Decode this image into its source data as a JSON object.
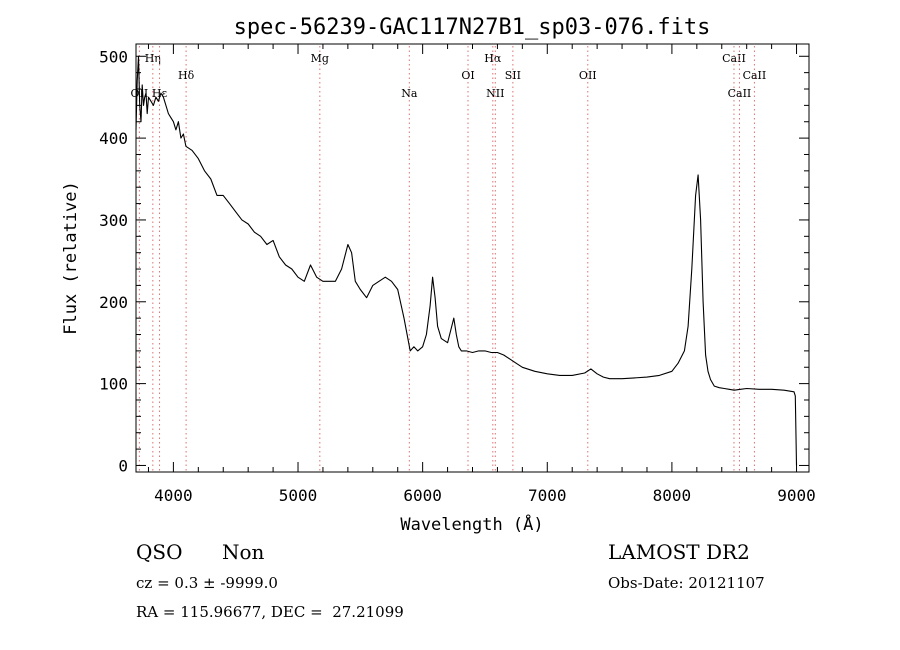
{
  "chart_data": {
    "type": "line",
    "title": "spec-56239-GAC117N27B1_sp03-076.fits",
    "xlabel": "Wavelength (Å)",
    "ylabel": "Flux (relative)",
    "xlim": [
      3700,
      9100
    ],
    "ylim": [
      -8,
      515
    ],
    "xticks": [
      "4000",
      "5000",
      "6000",
      "7000",
      "8000",
      "9000"
    ],
    "xtick_values": [
      4000,
      5000,
      6000,
      7000,
      8000,
      9000
    ],
    "yticks": [
      "0",
      "100",
      "200",
      "300",
      "400",
      "500"
    ],
    "ytick_values": [
      0,
      100,
      200,
      300,
      400,
      500
    ],
    "grid": false,
    "series": [
      {
        "color": "#000000",
        "x": [
          3700,
          3710,
          3720,
          3730,
          3740,
          3750,
          3760,
          3770,
          3780,
          3790,
          3800,
          3820,
          3840,
          3860,
          3880,
          3900,
          3920,
          3940,
          3960,
          3980,
          4000,
          4020,
          4040,
          4060,
          4080,
          4100,
          4150,
          4200,
          4250,
          4300,
          4350,
          4400,
          4450,
          4500,
          4550,
          4600,
          4650,
          4700,
          4750,
          4800,
          4850,
          4900,
          4950,
          5000,
          5050,
          5100,
          5150,
          5200,
          5250,
          5300,
          5350,
          5400,
          5430,
          5460,
          5500,
          5550,
          5600,
          5650,
          5700,
          5750,
          5800,
          5850,
          5900,
          5930,
          5960,
          6000,
          6030,
          6060,
          6080,
          6100,
          6120,
          6150,
          6200,
          6250,
          6270,
          6290,
          6310,
          6350,
          6400,
          6450,
          6500,
          6550,
          6600,
          6650,
          6700,
          6750,
          6800,
          6900,
          7000,
          7100,
          7200,
          7300,
          7350,
          7400,
          7450,
          7500,
          7600,
          7700,
          7800,
          7900,
          8000,
          8050,
          8100,
          8130,
          8160,
          8190,
          8210,
          8230,
          8250,
          8270,
          8290,
          8310,
          8340,
          8380,
          8420,
          8460,
          8500,
          8550,
          8600,
          8700,
          8800,
          8900,
          8980,
          8990,
          9000
        ],
        "y": [
          410,
          470,
          500,
          440,
          420,
          465,
          440,
          450,
          455,
          430,
          450,
          445,
          440,
          450,
          445,
          455,
          450,
          440,
          430,
          425,
          420,
          410,
          420,
          400,
          405,
          390,
          385,
          375,
          360,
          350,
          330,
          330,
          320,
          310,
          300,
          295,
          285,
          280,
          270,
          275,
          255,
          245,
          240,
          230,
          225,
          245,
          230,
          225,
          225,
          225,
          240,
          270,
          260,
          225,
          215,
          205,
          220,
          225,
          230,
          225,
          215,
          180,
          140,
          145,
          140,
          145,
          160,
          195,
          230,
          205,
          170,
          155,
          150,
          180,
          160,
          145,
          140,
          140,
          138,
          140,
          140,
          138,
          138,
          135,
          130,
          125,
          120,
          115,
          112,
          110,
          110,
          113,
          118,
          112,
          108,
          106,
          106,
          107,
          108,
          110,
          115,
          125,
          140,
          170,
          240,
          330,
          355,
          300,
          200,
          135,
          115,
          105,
          97,
          95,
          94,
          93,
          92,
          93,
          94,
          93,
          93,
          92,
          90,
          85,
          0
        ]
      }
    ],
    "line_markers": [
      {
        "label": "Hη",
        "x": 3835,
        "row": 1
      },
      {
        "label": "OII",
        "x": 3727,
        "row": 3
      },
      {
        "label": "Hε",
        "x": 3889,
        "row": 3
      },
      {
        "label": "Hδ",
        "x": 4102,
        "row": 2
      },
      {
        "label": "Mg",
        "x": 5175,
        "row": 1
      },
      {
        "label": "Na",
        "x": 5893,
        "row": 3
      },
      {
        "label": "OI",
        "x": 6364,
        "row": 2
      },
      {
        "label": "Hα",
        "x": 6563,
        "row": 1
      },
      {
        "label": "NII",
        "x": 6583,
        "row": 3
      },
      {
        "label": "SII",
        "x": 6724,
        "row": 2
      },
      {
        "label": "OII",
        "x": 7325,
        "row": 2
      },
      {
        "label": "CaII",
        "x": 8498,
        "row": 1
      },
      {
        "label": "CaII",
        "x": 8542,
        "row": 3
      },
      {
        "label": "CaII",
        "x": 8662,
        "row": 2
      }
    ],
    "marker_color": "#e07070"
  },
  "info": {
    "class": "QSO",
    "subclass": "Non",
    "cz": "cz = 0.3 ± -9999.0",
    "radec": "RA = 115.96677, DEC =  27.21099",
    "survey": "LAMOST DR2",
    "obsdate": "Obs-Date: 20121107"
  }
}
